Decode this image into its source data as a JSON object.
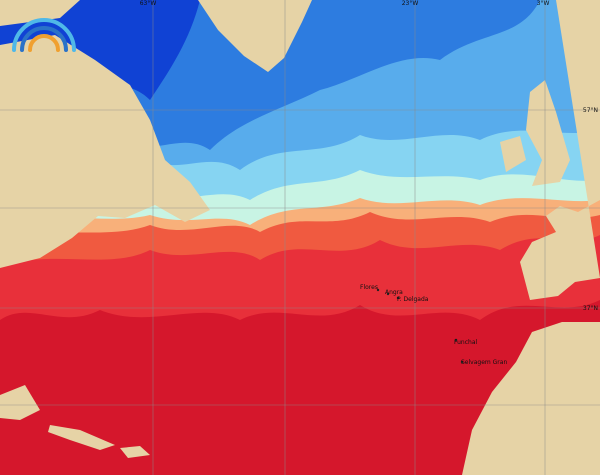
{
  "grid_labels": {
    "longitudes": [
      "63°W",
      "23°W",
      "3°W"
    ],
    "latitudes": [
      "57°N",
      "37°N"
    ]
  },
  "places": [
    {
      "label": "Flores"
    },
    {
      "label": "Angra"
    },
    {
      "label": "P. Delgada"
    },
    {
      "label": "Funchal"
    },
    {
      "label": "Selvagem Gran"
    }
  ]
}
